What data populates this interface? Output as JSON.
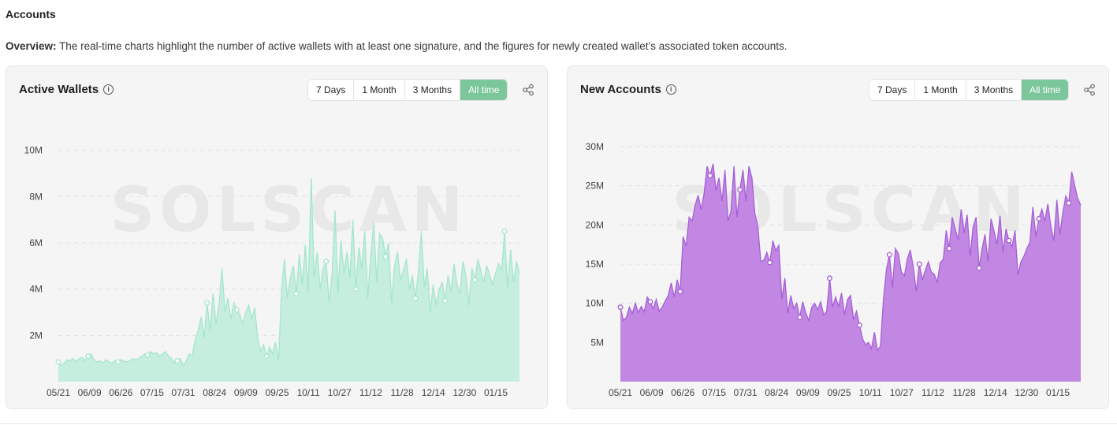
{
  "header": {
    "title": "Accounts",
    "overview_label": "Overview:",
    "overview_text": "The real-time charts highlight the number of active wallets with at least one signature, and the figures for newly created wallet’s associated token accounts."
  },
  "ranges": [
    "7 Days",
    "1 Month",
    "3 Months",
    "All time"
  ],
  "active_range": "All time",
  "colors": {
    "active_button": "#7cc69c",
    "green_fill": "#c5eedf",
    "green_line": "#a5e6cc",
    "purple_fill": "#c287e2",
    "purple_line": "#a55fd8"
  },
  "watermark": "SOLSCAN",
  "chart_data": [
    {
      "type": "area",
      "title": "Active Wallets",
      "x_tick_labels": [
        "05/21",
        "06/09",
        "06/26",
        "07/15",
        "07/31",
        "08/24",
        "09/09",
        "09/25",
        "10/11",
        "10/27",
        "11/12",
        "11/28",
        "12/14",
        "12/30",
        "01/15"
      ],
      "y_tick_labels": [
        "2M",
        "4M",
        "6M",
        "8M",
        "10M"
      ],
      "ylim": [
        0,
        10500000
      ],
      "grid": true,
      "values_millions": [
        0.85,
        0.7,
        0.8,
        0.95,
        0.9,
        1.0,
        0.85,
        1.0,
        1.05,
        0.9,
        1.1,
        1.2,
        0.95,
        0.85,
        0.9,
        0.8,
        0.95,
        0.85,
        0.8,
        0.9,
        0.85,
        0.95,
        0.9,
        0.85,
        0.9,
        1.0,
        0.95,
        1.0,
        1.1,
        1.2,
        1.15,
        1.3,
        1.2,
        1.25,
        1.1,
        1.2,
        1.3,
        1.1,
        1.0,
        0.8,
        0.9,
        1.0,
        0.7,
        0.9,
        1.2,
        1.1,
        1.8,
        2.2,
        2.8,
        1.9,
        3.4,
        2.2,
        3.8,
        2.5,
        3.3,
        4.9,
        3.0,
        3.6,
        2.7,
        3.4,
        3.1,
        2.9,
        2.5,
        3.0,
        3.3,
        2.7,
        3.2,
        1.9,
        1.3,
        1.6,
        1.1,
        1.5,
        1.2,
        1.7,
        0.9,
        3.9,
        5.3,
        3.6,
        4.5,
        5.0,
        3.8,
        5.5,
        4.2,
        5.9,
        3.9,
        8.8,
        4.5,
        5.6,
        4.0,
        4.9,
        5.2,
        3.4,
        4.6,
        7.4,
        3.8,
        6.1,
        4.7,
        5.6,
        4.5,
        7.0,
        4.0,
        5.8,
        4.9,
        6.5,
        3.6,
        5.4,
        6.9,
        4.3,
        6.4,
        6.2,
        5.4,
        6.0,
        3.4,
        5.0,
        5.6,
        4.4,
        4.8,
        5.3,
        4.0,
        4.6,
        3.6,
        4.7,
        6.5,
        4.1,
        4.9,
        3.0,
        4.2,
        3.3,
        4.0,
        4.3,
        3.5,
        4.6,
        3.9,
        5.1,
        4.2,
        3.8,
        5.2,
        4.6,
        3.3,
        4.9,
        4.4,
        5.3,
        4.8,
        4.3,
        5.0,
        4.6,
        4.2,
        4.7,
        5.1,
        4.8,
        6.5,
        4.0,
        5.7,
        4.3,
        5.2,
        4.7
      ]
    },
    {
      "type": "area",
      "title": "New Accounts",
      "x_tick_labels": [
        "05/21",
        "06/09",
        "06/26",
        "07/15",
        "07/31",
        "08/24",
        "09/09",
        "09/25",
        "10/11",
        "10/27",
        "11/12",
        "11/28",
        "12/14",
        "12/30",
        "01/15"
      ],
      "y_tick_labels": [
        "5M",
        "10M",
        "15M",
        "20M",
        "25M",
        "30M"
      ],
      "ylim": [
        0,
        31000000
      ],
      "grid": true,
      "values_millions": [
        9.5,
        7.8,
        8.2,
        9.5,
        8.7,
        10.0,
        8.8,
        9.6,
        8.9,
        10.8,
        10.2,
        9.3,
        10.5,
        9.0,
        9.5,
        10.3,
        11.0,
        12.6,
        10.8,
        13.0,
        11.5,
        18.5,
        17.3,
        21.0,
        20.5,
        22.5,
        23.8,
        22.0,
        24.0,
        27.5,
        26.3,
        27.8,
        24.4,
        26.0,
        23.0,
        27.0,
        20.5,
        21.7,
        27.5,
        21.0,
        24.5,
        27.0,
        23.0,
        27.5,
        26.0,
        21.5,
        19.8,
        15.3,
        15.5,
        16.5,
        15.2,
        18.0,
        16.7,
        17.4,
        10.5,
        13.2,
        8.7,
        11.0,
        9.3,
        10.0,
        8.2,
        10.2,
        8.8,
        7.8,
        9.5,
        10.0,
        9.2,
        10.2,
        8.5,
        9.0,
        13.2,
        9.5,
        10.8,
        9.6,
        11.3,
        8.5,
        10.5,
        11.0,
        7.9,
        9.0,
        7.2,
        5.5,
        4.7,
        5.0,
        4.2,
        6.3,
        4.0,
        4.5,
        10.5,
        14.3,
        16.2,
        12.0,
        17.0,
        16.3,
        14.0,
        13.5,
        15.7,
        16.8,
        14.6,
        11.5,
        15.0,
        13.0,
        14.2,
        15.3,
        14.0,
        13.7,
        12.7,
        15.2,
        15.6,
        19.3,
        17.0,
        21.0,
        19.5,
        18.1,
        22.0,
        19.0,
        21.3,
        16.0,
        19.8,
        21.0,
        14.5,
        17.0,
        18.8,
        15.3,
        20.8,
        19.2,
        17.5,
        21.2,
        16.5,
        19.5,
        18.0,
        17.2,
        19.3,
        13.6,
        15.3,
        16.0,
        17.0,
        17.8,
        22.3,
        18.5,
        20.8,
        22.0,
        20.5,
        22.7,
        19.8,
        18.0,
        23.2,
        18.8,
        21.5,
        23.7,
        22.8,
        26.8,
        25.0,
        23.4,
        22.5
      ]
    }
  ]
}
